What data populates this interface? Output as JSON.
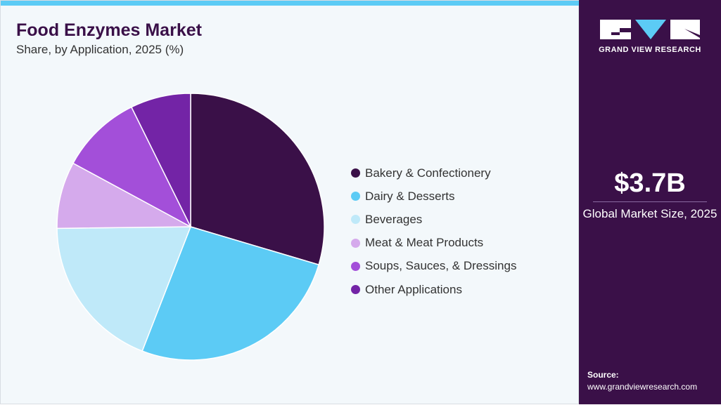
{
  "chart_data": {
    "type": "pie",
    "title": "Food Enzymes Market",
    "subtitle": "Share, by Application, 2025 (%)",
    "categories": [
      "Bakery & Confectionery",
      "Dairy & Desserts",
      "Beverages",
      "Meat & Meat Products",
      "Soups, Sauces, & Dressings",
      "Other Applications"
    ],
    "values": [
      29.6,
      26.3,
      18.9,
      8.1,
      9.8,
      7.3
    ],
    "colors": [
      "#3a1048",
      "#5ccbf5",
      "#bfe9f9",
      "#d5aaec",
      "#a34fd9",
      "#7324a6"
    ],
    "start_angle": "top",
    "direction": "clockwise",
    "legend_position": "right"
  },
  "side": {
    "logo_text": "GRAND VIEW RESEARCH",
    "market_size": "$3.7B",
    "market_label": "Global Market Size, 2025",
    "source_label": "Source:",
    "source_url": "www.grandviewresearch.com"
  }
}
